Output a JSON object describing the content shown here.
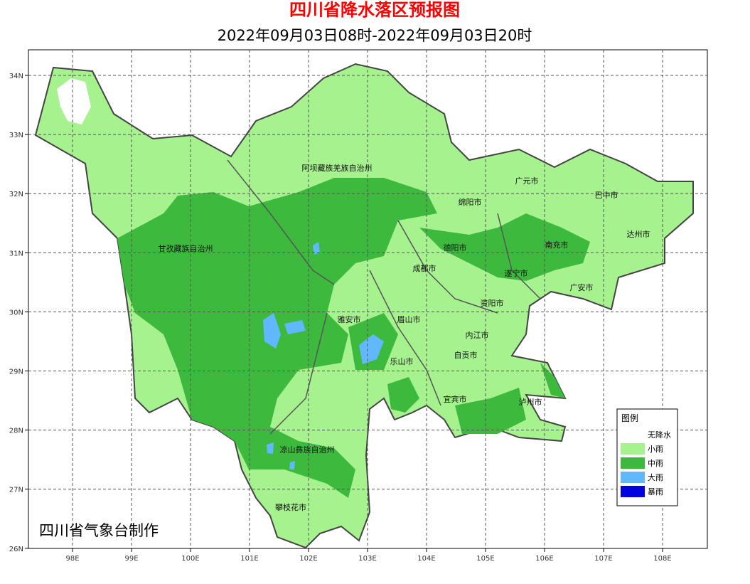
{
  "header": {
    "title": "四川省降水落区预报图",
    "subtitle": "2022年09月03日08时-2022年09月03日20时"
  },
  "map": {
    "lat_labels": [
      "34N",
      "33N",
      "32N",
      "31N",
      "30N",
      "29N",
      "28N",
      "27N",
      "26N"
    ],
    "lon_labels": [
      "98E",
      "99E",
      "100E",
      "101E",
      "102E",
      "103E",
      "104E",
      "105E",
      "106E",
      "107E",
      "108E"
    ],
    "places": [
      "阿坝藏族羌族自治州",
      "广元市",
      "巴中市",
      "绵阳市",
      "达州市",
      "甘孜藏族自治州",
      "德阳市",
      "南充市",
      "成都市",
      "遂宁市",
      "广安市",
      "资阳市",
      "雅安市",
      "眉山市",
      "内江市",
      "自贡市",
      "乐山市",
      "宜宾市",
      "泸州市",
      "凉山彝族自治州",
      "攀枝花市"
    ]
  },
  "legend": {
    "title": "图例",
    "items": [
      {
        "label": "无降水",
        "color": "#ffffff"
      },
      {
        "label": "小雨",
        "color": "#a6f28f"
      },
      {
        "label": "中雨",
        "color": "#3dba3d"
      },
      {
        "label": "大雨",
        "color": "#61b8ff"
      },
      {
        "label": "暴雨",
        "color": "#0000e1"
      }
    ]
  },
  "credit": "四川省气象台制作"
}
